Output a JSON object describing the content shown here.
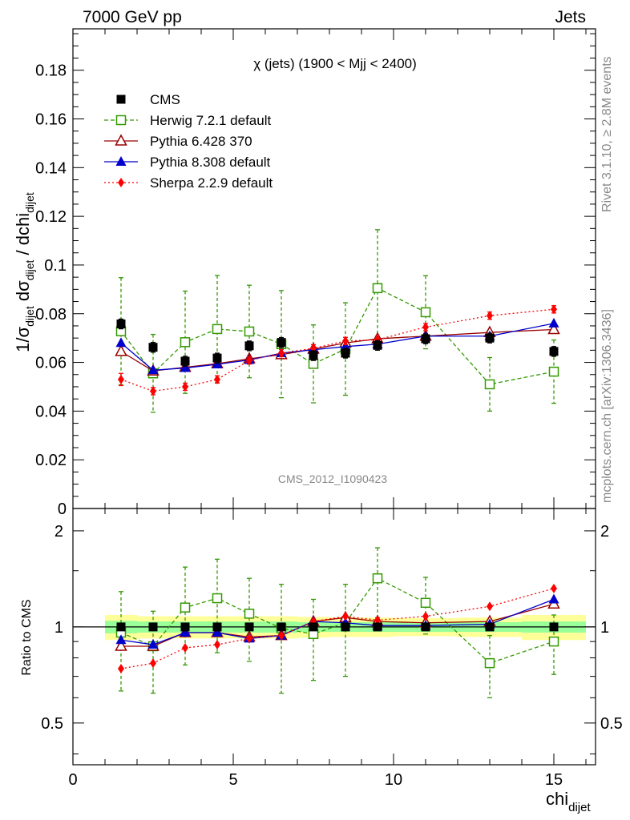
{
  "header": {
    "left": "7000 GeV pp",
    "right": "Jets"
  },
  "side_text": {
    "rivet": "Rivet 3.1.10, ≥ 2.8M events",
    "mcplots": "mcplots.cern.ch [arXiv:1306.3436]"
  },
  "watermark": "CMS_2012_I1090423",
  "chart_data": {
    "type": "scatter",
    "title": "χ (jets) (1900 < Mjj < 2400)",
    "xlabel": "chi_dijet",
    "ylabel": "1/σ_dijet dσ_dijet / dchi_dijet",
    "ratio_ylabel": "Ratio to CMS",
    "xlim": [
      0,
      16.3
    ],
    "ylim": [
      0,
      0.197
    ],
    "ratio_ylim": [
      0.37,
      2.35
    ],
    "ratio_scale": "log",
    "x_ticks": [
      "0",
      "5",
      "10",
      "15"
    ],
    "y_ticks": [
      "0",
      "0.02",
      "0.04",
      "0.06",
      "0.08",
      "0.1",
      "0.12",
      "0.14",
      "0.16",
      "0.18"
    ],
    "ratio_ticks": [
      "0.5",
      "1",
      "2"
    ],
    "bins": [
      [
        1,
        2
      ],
      [
        2,
        3
      ],
      [
        3,
        4
      ],
      [
        4,
        5
      ],
      [
        5,
        6
      ],
      [
        6,
        7
      ],
      [
        7,
        8
      ],
      [
        8,
        9
      ],
      [
        9,
        10
      ],
      [
        10,
        12
      ],
      [
        12,
        14
      ],
      [
        14,
        16
      ]
    ],
    "x": [
      1.5,
      2.5,
      3.5,
      4.5,
      5.5,
      6.5,
      7.5,
      8.5,
      9.5,
      11,
      13,
      15
    ],
    "ratio_band": {
      "green": [
        0.045,
        0.04,
        0.04,
        0.04,
        0.04,
        0.04,
        0.035,
        0.035,
        0.035,
        0.035,
        0.035,
        0.04
      ],
      "yellow": [
        0.09,
        0.08,
        0.08,
        0.08,
        0.08,
        0.08,
        0.075,
        0.07,
        0.07,
        0.065,
        0.07,
        0.09
      ]
    },
    "legend_position": "top-left",
    "series": [
      {
        "name": "CMS",
        "color": "#000000",
        "marker": "square-filled",
        "line": "none",
        "values": [
          0.0758,
          0.0662,
          0.0605,
          0.0618,
          0.0668,
          0.0682,
          0.0628,
          0.0638,
          0.067,
          0.0697,
          0.07,
          0.0645
        ],
        "errors": [
          0.002,
          0.002,
          0.002,
          0.002,
          0.002,
          0.002,
          0.002,
          0.002,
          0.002,
          0.002,
          0.002,
          0.002
        ],
        "ratio": [
          1,
          1,
          1,
          1,
          1,
          1,
          1,
          1,
          1,
          1,
          1,
          1
        ]
      },
      {
        "name": "Herwig 7.2.1 default",
        "color": "#339900",
        "marker": "square-open",
        "line": "dashed",
        "values": [
          0.0728,
          0.0555,
          0.0683,
          0.0737,
          0.0727,
          0.0675,
          0.0594,
          0.0655,
          0.0905,
          0.0806,
          0.051,
          0.0562
        ],
        "errors": [
          0.022,
          0.016,
          0.021,
          0.022,
          0.019,
          0.022,
          0.016,
          0.019,
          0.024,
          0.015,
          0.011,
          0.013
        ],
        "ratio": [
          0.96,
          0.87,
          1.15,
          1.23,
          1.1,
          0.99,
          0.95,
          1.03,
          1.42,
          1.19,
          0.77,
          0.9
        ],
        "ratio_errors": [
          0.33,
          0.25,
          0.39,
          0.4,
          0.32,
          0.37,
          0.27,
          0.33,
          0.35,
          0.24,
          0.17,
          0.19
        ]
      },
      {
        "name": "Pythia 6.428 370",
        "color": "#990000",
        "marker": "triangle-open",
        "line": "solid",
        "values": [
          0.0645,
          0.0565,
          0.058,
          0.0595,
          0.0615,
          0.0632,
          0.0655,
          0.068,
          0.0697,
          0.0708,
          0.0723,
          0.0735
        ],
        "ratio": [
          0.87,
          0.87,
          0.96,
          0.96,
          0.93,
          0.94,
          1.04,
          1.07,
          1.04,
          1.03,
          1.04,
          1.18
        ]
      },
      {
        "name": "Pythia 8.308 default",
        "color": "#0000cc",
        "marker": "triangle-filled",
        "line": "solid",
        "values": [
          0.068,
          0.0568,
          0.0577,
          0.0592,
          0.061,
          0.0638,
          0.0652,
          0.0665,
          0.0675,
          0.0708,
          0.0708,
          0.076
        ],
        "ratio": [
          0.91,
          0.88,
          0.96,
          0.96,
          0.92,
          0.94,
          1.04,
          1.03,
          1.01,
          1.01,
          1.02,
          1.22
        ]
      },
      {
        "name": "Sherpa 2.2.9 default",
        "color": "#ff0000",
        "marker": "diamond-filled",
        "line": "dotted",
        "values": [
          0.053,
          0.0482,
          0.05,
          0.053,
          0.0608,
          0.0638,
          0.0658,
          0.0688,
          0.0693,
          0.0745,
          0.0792,
          0.0818
        ],
        "errors": [
          0.0025,
          0.0015,
          0.0015,
          0.0015,
          0.0015,
          0.0015,
          0.0015,
          0.0015,
          0.0015,
          0.0015,
          0.0015,
          0.0015
        ],
        "ratio": [
          0.74,
          0.77,
          0.86,
          0.88,
          0.92,
          0.94,
          1.04,
          1.08,
          1.05,
          1.08,
          1.16,
          1.32
        ]
      }
    ]
  }
}
